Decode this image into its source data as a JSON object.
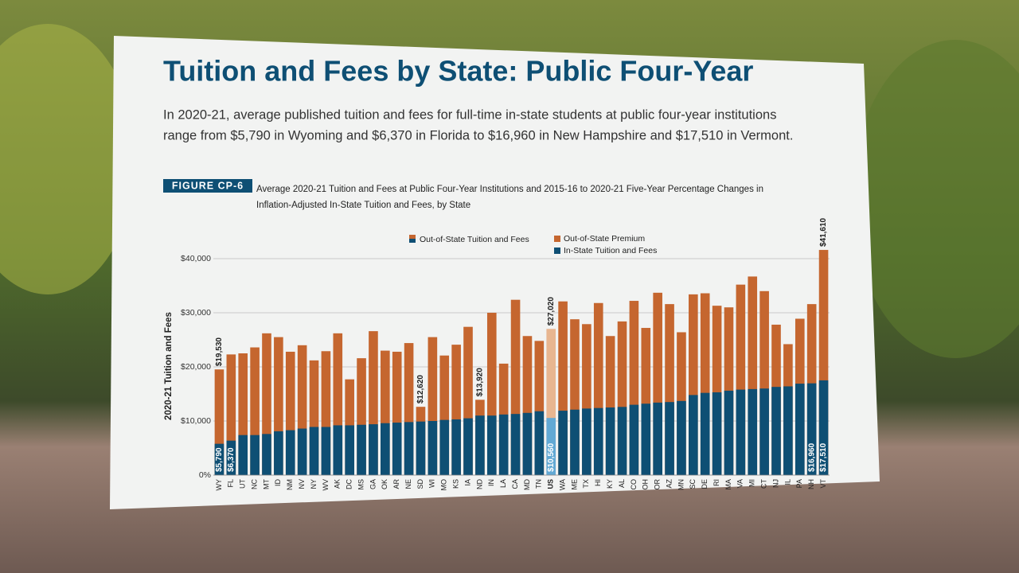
{
  "chart_data": {
    "type": "bar",
    "title": "Tuition and Fees by State: Public Four-Year",
    "subtitle_lines": [
      "In 2020-21, average published tuition and fees for full-time in-state students at public four-year institutions",
      "range from $5,790 in Wyoming and $6,370 in Florida to $16,960 in New Hampshire and $17,510 in Vermont."
    ],
    "figure_label": "FIGURE CP-6",
    "caption_lines": [
      "Average 2020-21 Tuition and Fees at Public Four-Year Institutions and 2015-16 to 2020-21 Five-Year Percentage Changes in",
      "Inflation-Adjusted In-State Tuition and Fees, by State"
    ],
    "y_label": "2020-21 Tuition and Fees",
    "categories": [
      "WY",
      "FL",
      "UT",
      "NC",
      "MT",
      "ID",
      "NM",
      "NV",
      "NY",
      "WV",
      "AK",
      "DC",
      "MS",
      "GA",
      "OK",
      "AR",
      "NE",
      "SD",
      "WI",
      "MO",
      "KS",
      "IA",
      "ND",
      "IN",
      "LA",
      "CA",
      "MD",
      "TN",
      "US",
      "WA",
      "ME",
      "TX",
      "HI",
      "KY",
      "AL",
      "CO",
      "OH",
      "OR",
      "AZ",
      "MN",
      "SC",
      "DE",
      "RI",
      "MA",
      "VA",
      "MI",
      "CT",
      "NJ",
      "IL",
      "PA",
      "NH",
      "VT"
    ],
    "highlight": "US",
    "series": [
      {
        "name": "Out-of-State Tuition and Fees",
        "color": "#c5662f",
        "highlight_color": "#e8b690",
        "values": [
          19530,
          22300,
          22500,
          23600,
          26200,
          25500,
          22800,
          24000,
          21200,
          22900,
          26200,
          17700,
          21600,
          26600,
          23000,
          22800,
          24400,
          12620,
          25500,
          22100,
          24100,
          27400,
          13920,
          30000,
          20600,
          32400,
          25700,
          24800,
          27020,
          32100,
          28800,
          27900,
          31800,
          25700,
          28400,
          32200,
          27200,
          33700,
          31600,
          26400,
          33400,
          33600,
          31300,
          31000,
          35200,
          36700,
          34000,
          27800,
          24200,
          28900,
          31600,
          41610
        ],
        "value_labels": [
          "$19,530",
          null,
          null,
          null,
          null,
          null,
          null,
          null,
          null,
          null,
          null,
          null,
          null,
          null,
          null,
          null,
          null,
          "$12,620",
          null,
          null,
          null,
          null,
          "$13,920",
          null,
          null,
          null,
          null,
          null,
          "$27,020",
          null,
          null,
          null,
          null,
          null,
          null,
          null,
          null,
          null,
          null,
          null,
          null,
          null,
          null,
          null,
          null,
          null,
          null,
          null,
          null,
          null,
          null,
          "$41,610"
        ]
      },
      {
        "name": "In-State Tuition and Fees",
        "color": "#0e4f74",
        "highlight_color": "#62a9d4",
        "values": [
          5790,
          6370,
          7400,
          7400,
          7600,
          8100,
          8300,
          8600,
          8900,
          8900,
          9200,
          9200,
          9300,
          9400,
          9600,
          9700,
          9800,
          9900,
          10000,
          10200,
          10300,
          10500,
          11000,
          11000,
          11200,
          11300,
          11500,
          11800,
          10560,
          11900,
          12100,
          12300,
          12400,
          12500,
          12600,
          13000,
          13200,
          13400,
          13500,
          13700,
          14800,
          15200,
          15300,
          15600,
          15800,
          15900,
          16000,
          16300,
          16400,
          16900,
          16960,
          17510
        ],
        "value_labels": [
          "$5,790",
          "$6,370",
          null,
          null,
          null,
          null,
          null,
          null,
          null,
          null,
          null,
          null,
          null,
          null,
          null,
          null,
          null,
          null,
          null,
          null,
          null,
          null,
          null,
          null,
          null,
          null,
          null,
          null,
          "$10,560",
          null,
          null,
          null,
          null,
          null,
          null,
          null,
          null,
          null,
          null,
          null,
          null,
          null,
          null,
          null,
          null,
          null,
          null,
          null,
          null,
          null,
          "$16,960",
          "$17,510"
        ]
      }
    ],
    "premium_legend": {
      "name": "Out-of-State Premium",
      "color": "#c5662f"
    },
    "ylim": [
      0,
      42000
    ],
    "yticks": [
      {
        "value": 0,
        "label": "0%"
      },
      {
        "value": 10000,
        "label": "$10,000"
      },
      {
        "value": 20000,
        "label": "$20,000"
      },
      {
        "value": 30000,
        "label": "$30,000"
      },
      {
        "value": 40000,
        "label": "$40,000"
      }
    ],
    "grid": true
  }
}
